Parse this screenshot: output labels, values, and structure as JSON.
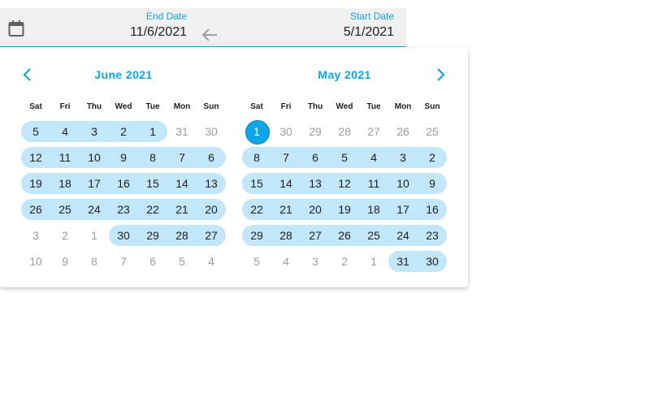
{
  "input": {
    "end_label": "End Date",
    "end_value": "11/6/2021",
    "start_label": "Start Date",
    "start_value": "5/1/2021",
    "icons": {
      "calendar": "calendar-icon",
      "swap": "arrow-left-icon"
    }
  },
  "nav": {
    "prev": "chevron-left-icon",
    "next": "chevron-right-icon"
  },
  "colors": {
    "accent": "#0ea5e9",
    "range": "#c3e7fa",
    "muted": "#9e9e9e"
  },
  "weekdays": [
    "Sat",
    "Fri",
    "Thu",
    "Wed",
    "Tue",
    "Mon",
    "Sun"
  ],
  "months": [
    {
      "title": "June 2021",
      "weeks": [
        {
          "days": [
            "5",
            "4",
            "3",
            "2",
            "1",
            "31",
            "30"
          ],
          "inMonth": [
            1,
            1,
            1,
            1,
            1,
            0,
            0
          ],
          "range": [
            0,
            4
          ]
        },
        {
          "days": [
            "12",
            "11",
            "10",
            "9",
            "8",
            "7",
            "6"
          ],
          "inMonth": [
            1,
            1,
            1,
            1,
            1,
            1,
            1
          ],
          "range": [
            0,
            6
          ]
        },
        {
          "days": [
            "19",
            "18",
            "17",
            "16",
            "15",
            "14",
            "13"
          ],
          "inMonth": [
            1,
            1,
            1,
            1,
            1,
            1,
            1
          ],
          "range": [
            0,
            6
          ]
        },
        {
          "days": [
            "26",
            "25",
            "24",
            "23",
            "22",
            "21",
            "20"
          ],
          "inMonth": [
            1,
            1,
            1,
            1,
            1,
            1,
            1
          ],
          "range": [
            0,
            6
          ]
        },
        {
          "days": [
            "3",
            "2",
            "1",
            "30",
            "29",
            "28",
            "27"
          ],
          "inMonth": [
            0,
            0,
            0,
            1,
            1,
            1,
            1
          ],
          "range": [
            3,
            6
          ]
        },
        {
          "days": [
            "10",
            "9",
            "8",
            "7",
            "6",
            "5",
            "4"
          ],
          "inMonth": [
            0,
            0,
            0,
            0,
            0,
            0,
            0
          ],
          "range": null
        }
      ]
    },
    {
      "title": "May 2021",
      "weeks": [
        {
          "days": [
            "1",
            "30",
            "29",
            "28",
            "27",
            "26",
            "25"
          ],
          "inMonth": [
            1,
            0,
            0,
            0,
            0,
            0,
            0
          ],
          "range": null,
          "selected": 0
        },
        {
          "days": [
            "8",
            "7",
            "6",
            "5",
            "4",
            "3",
            "2"
          ],
          "inMonth": [
            1,
            1,
            1,
            1,
            1,
            1,
            1
          ],
          "range": [
            0,
            6
          ]
        },
        {
          "days": [
            "15",
            "14",
            "13",
            "12",
            "11",
            "10",
            "9"
          ],
          "inMonth": [
            1,
            1,
            1,
            1,
            1,
            1,
            1
          ],
          "range": [
            0,
            6
          ]
        },
        {
          "days": [
            "22",
            "21",
            "20",
            "19",
            "18",
            "17",
            "16"
          ],
          "inMonth": [
            1,
            1,
            1,
            1,
            1,
            1,
            1
          ],
          "range": [
            0,
            6
          ]
        },
        {
          "days": [
            "29",
            "28",
            "27",
            "26",
            "25",
            "24",
            "23"
          ],
          "inMonth": [
            1,
            1,
            1,
            1,
            1,
            1,
            1
          ],
          "range": [
            0,
            6
          ]
        },
        {
          "days": [
            "5",
            "4",
            "3",
            "2",
            "1",
            "31",
            "30"
          ],
          "inMonth": [
            0,
            0,
            0,
            0,
            0,
            1,
            1
          ],
          "range": [
            5,
            6
          ]
        }
      ]
    }
  ]
}
